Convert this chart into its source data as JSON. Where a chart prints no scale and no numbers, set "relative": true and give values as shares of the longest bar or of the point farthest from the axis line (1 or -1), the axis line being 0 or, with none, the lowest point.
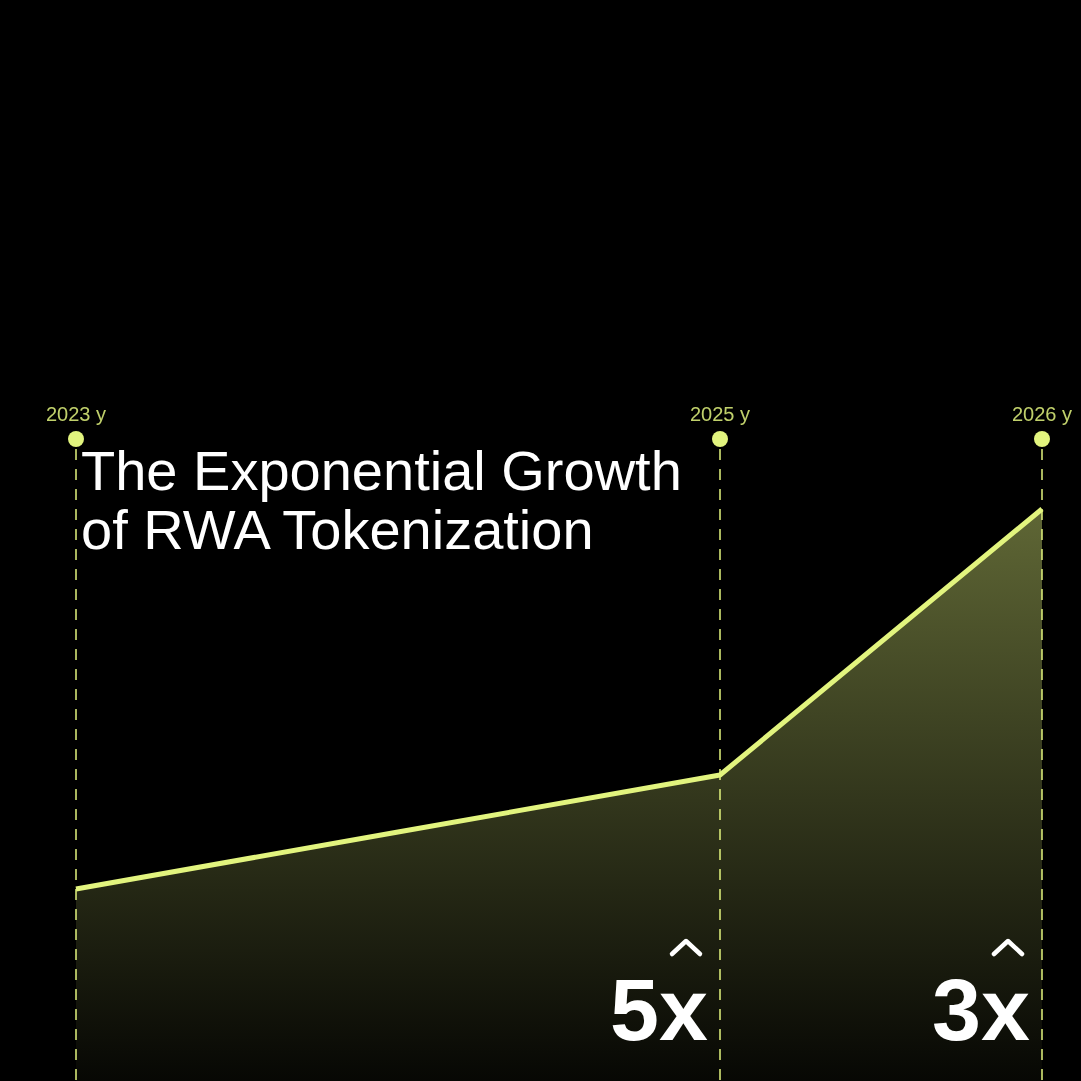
{
  "chart_data": {
    "type": "area",
    "title": "The Exponential Growth\nof RWA Tokenization",
    "relative": true,
    "categories": [
      "2023 y",
      null,
      "2025 y",
      "2026 y"
    ],
    "series": [
      {
        "color": "#e2f47e",
        "values": [
          0,
          0.15,
          0.3,
          1
        ]
      }
    ],
    "ref_lines": [
      {
        "axis": "x",
        "value": "2023 y",
        "color": "#e2f47e",
        "line_style": "dashed"
      },
      {
        "axis": "x",
        "value": "2025 y",
        "color": "#e2f47e",
        "line_style": "dashed"
      },
      {
        "axis": "x",
        "value": "2026 y",
        "color": "#e2f47e",
        "line_style": "dashed"
      }
    ],
    "annotations": [
      "5x",
      "3x"
    ]
  }
}
